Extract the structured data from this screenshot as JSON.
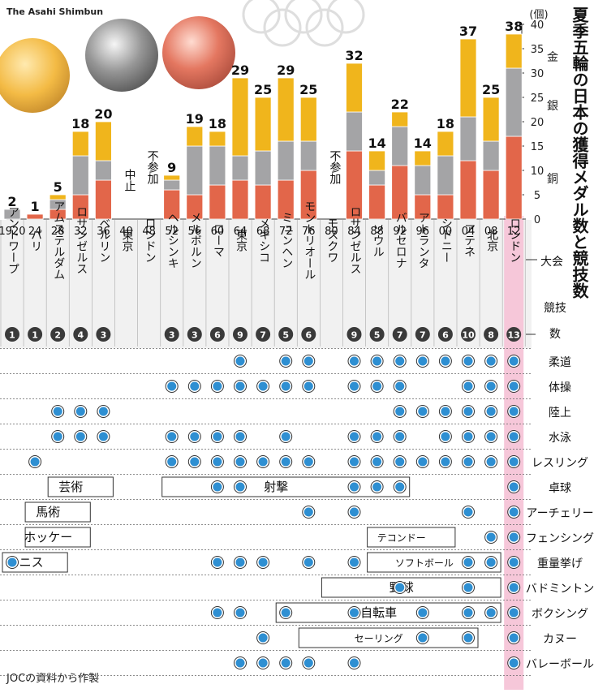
{
  "credit": "The Asahi Shimbun",
  "title": "夏季五輪の日本の獲得メダル数と競技数",
  "source": "JOCの資料から作製",
  "label_taikai": "大会",
  "label_kyogisu": "競技数",
  "unit": "(個)",
  "medal_labels": {
    "gold": "金",
    "silver": "銀",
    "bronze": "銅"
  },
  "not_participated": "不参加",
  "cancelled": "中止",
  "colors": {
    "gold": "#f0b51c",
    "silver": "#a4a4a6",
    "bronze": "#e2664a",
    "dot": "#2e8fd2",
    "badge": "#3a3a3a",
    "highlight": "#f6c7d9",
    "header_bg": "#f1f1f1",
    "row_alt": "#eeeeee"
  },
  "chart_data": {
    "type": "bar",
    "stacked": true,
    "ylim": [
      0,
      40
    ],
    "yticks": [
      0,
      5,
      10,
      15,
      20,
      25,
      30,
      35,
      40
    ],
    "categories": [
      "1920",
      "24",
      "28",
      "32",
      "36",
      "40",
      "48",
      "52",
      "56",
      "60",
      "64",
      "68",
      "72",
      "76",
      "80",
      "84",
      "88",
      "92",
      "96",
      "00",
      "04",
      "08",
      "12"
    ],
    "cities": [
      "アントワープ",
      "パリ",
      "アムステルダム",
      "ロサンゼルス",
      "ベルリン",
      "東京",
      "ロンドン",
      "ヘルシンキ",
      "メルボルン",
      "ローマ",
      "東京",
      "メキシコ",
      "ミュンヘン",
      "モントリオール",
      "モスクワ",
      "ロサンゼルス",
      "ソウル",
      "バルセロナ",
      "アトランタ",
      "シドニー",
      "アテネ",
      "北京",
      "ロンドン"
    ],
    "totals": [
      "2",
      "1",
      "5",
      "18",
      "20",
      "",
      "",
      "9",
      "19",
      "18",
      "29",
      "25",
      "29",
      "25",
      "",
      "32",
      "14",
      "22",
      "14",
      "18",
      "37",
      "25",
      "38"
    ],
    "notes": [
      "",
      "",
      "",
      "",
      "",
      "中止",
      "不参加",
      "",
      "",
      "",
      "",
      "",
      "",
      "",
      "不参加",
      "",
      "",
      "",
      "",
      "",
      "",
      "",
      ""
    ],
    "series": [
      {
        "name": "銅",
        "key": "bronze",
        "values": [
          0,
          1,
          2,
          5,
          8,
          0,
          0,
          6,
          5,
          7,
          8,
          7,
          8,
          10,
          0,
          14,
          7,
          11,
          5,
          5,
          12,
          10,
          17
        ]
      },
      {
        "name": "銀",
        "key": "silver",
        "values": [
          2,
          0,
          2,
          8,
          4,
          0,
          0,
          2,
          10,
          8,
          5,
          7,
          8,
          6,
          0,
          8,
          3,
          8,
          6,
          8,
          9,
          6,
          14
        ]
      },
      {
        "name": "金",
        "key": "gold",
        "values": [
          0,
          0,
          1,
          5,
          8,
          0,
          0,
          1,
          4,
          3,
          16,
          11,
          13,
          9,
          0,
          10,
          4,
          3,
          3,
          5,
          16,
          9,
          7
        ]
      }
    ],
    "event_counts": [
      "1",
      "1",
      "2",
      "4",
      "3",
      "",
      "",
      "3",
      "3",
      "6",
      "9",
      "7",
      "5",
      "6",
      "",
      "9",
      "5",
      "7",
      "7",
      "6",
      "10",
      "8",
      "13"
    ],
    "sports": [
      "柔道",
      "体操",
      "陸上",
      "水泳",
      "レスリング",
      "卓球",
      "アーチェリー",
      "フェンシング",
      "重量挙げ",
      "バドミントン",
      "ボクシング",
      "カヌー",
      "バレーボール"
    ],
    "medal_sport_grid": [
      [
        0,
        0,
        0,
        0,
        0,
        0,
        0,
        0,
        0,
        0,
        1,
        0,
        1,
        1,
        0,
        1,
        1,
        1,
        1,
        1,
        1,
        1,
        1
      ],
      [
        0,
        0,
        0,
        0,
        0,
        0,
        0,
        1,
        1,
        1,
        1,
        1,
        1,
        1,
        0,
        1,
        1,
        1,
        0,
        0,
        1,
        1,
        1
      ],
      [
        0,
        0,
        1,
        1,
        1,
        0,
        0,
        0,
        0,
        0,
        0,
        0,
        0,
        0,
        0,
        0,
        0,
        1,
        1,
        1,
        1,
        1,
        1
      ],
      [
        0,
        0,
        1,
        1,
        1,
        0,
        0,
        1,
        1,
        1,
        1,
        0,
        1,
        0,
        0,
        1,
        1,
        1,
        0,
        1,
        1,
        1,
        1
      ],
      [
        0,
        1,
        0,
        0,
        0,
        0,
        0,
        1,
        1,
        1,
        1,
        1,
        1,
        1,
        0,
        1,
        1,
        1,
        1,
        1,
        1,
        1,
        1
      ],
      [
        0,
        0,
        0,
        0,
        0,
        0,
        0,
        0,
        0,
        1,
        1,
        0,
        0,
        0,
        0,
        1,
        1,
        1,
        0,
        0,
        0,
        0,
        1
      ],
      [
        0,
        0,
        0,
        0,
        0,
        0,
        0,
        0,
        0,
        0,
        0,
        0,
        0,
        1,
        0,
        1,
        0,
        0,
        0,
        0,
        1,
        0,
        1
      ],
      [
        0,
        0,
        0,
        0,
        0,
        0,
        0,
        0,
        0,
        0,
        0,
        0,
        0,
        0,
        0,
        0,
        0,
        0,
        0,
        0,
        0,
        1,
        1
      ],
      [
        1,
        0,
        0,
        0,
        0,
        0,
        0,
        0,
        0,
        1,
        1,
        1,
        0,
        1,
        0,
        1,
        0,
        0,
        0,
        0,
        1,
        1,
        1
      ],
      [
        0,
        0,
        0,
        0,
        0,
        0,
        0,
        0,
        0,
        0,
        0,
        0,
        0,
        0,
        0,
        0,
        0,
        1,
        0,
        0,
        1,
        0,
        1
      ],
      [
        0,
        0,
        0,
        0,
        0,
        0,
        0,
        0,
        0,
        1,
        1,
        0,
        1,
        0,
        0,
        1,
        0,
        0,
        1,
        0,
        1,
        1,
        1
      ],
      [
        0,
        0,
        0,
        0,
        0,
        0,
        0,
        0,
        0,
        0,
        0,
        1,
        0,
        0,
        0,
        0,
        0,
        0,
        1,
        0,
        1,
        0,
        1
      ],
      [
        0,
        0,
        0,
        0,
        0,
        0,
        0,
        0,
        0,
        0,
        1,
        1,
        1,
        1,
        0,
        1,
        0,
        0,
        0,
        0,
        0,
        0,
        1
      ]
    ],
    "discontinued_sports": [
      {
        "name": "芸術",
        "row": 5,
        "from": 2,
        "to": 4
      },
      {
        "name": "射撃",
        "row": 5,
        "from": 7,
        "to": 17
      },
      {
        "name": "馬術",
        "row": 6,
        "from": 1,
        "to": 3
      },
      {
        "name": "ホッケー",
        "row": 7,
        "from": 1,
        "to": 3
      },
      {
        "name": "テコンドー",
        "row": 7,
        "from": 16,
        "to": 19
      },
      {
        "name": "テニス",
        "row": 8,
        "from": 0,
        "to": 2
      },
      {
        "name": "ソフトボール",
        "row": 8,
        "from": 16,
        "to": 21
      },
      {
        "name": "野球",
        "row": 9,
        "from": 14,
        "to": 21
      },
      {
        "name": "自転車",
        "row": 10,
        "from": 12,
        "to": 21
      },
      {
        "name": "セーリング",
        "row": 11,
        "from": 13,
        "to": 20
      }
    ]
  }
}
